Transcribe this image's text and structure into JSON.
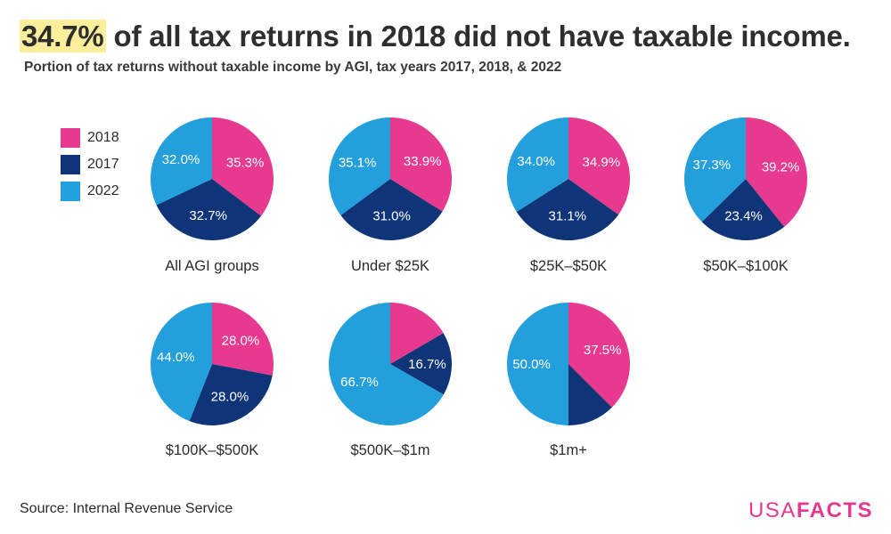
{
  "headline": {
    "highlight": "34.7%",
    "rest": " of all tax returns in 2018 did not have taxable income."
  },
  "subtitle": "Portion of tax returns without taxable income by AGI, tax years 2017, 2018, & 2022",
  "legend": [
    {
      "label": "2018",
      "color": "#e6398f"
    },
    {
      "label": "2017",
      "color": "#0f3578"
    },
    {
      "label": "2022",
      "color": "#239fdb"
    }
  ],
  "chart_data": {
    "type": "pie",
    "title": "34.7% of all tax returns in 2018 did not have taxable income.",
    "subtitle": "Portion of tax returns without taxable income by AGI, tax years 2017, 2018, & 2022",
    "series_order": [
      "2018",
      "2017",
      "2022"
    ],
    "pies": [
      {
        "label": "All AGI groups",
        "values": [
          35.3,
          32.7,
          32.0
        ],
        "value_labels": [
          "35.3%",
          "32.7%",
          "32.0%"
        ]
      },
      {
        "label": "Under $25K",
        "values": [
          33.9,
          31.0,
          35.1
        ],
        "value_labels": [
          "33.9%",
          "31.0%",
          "35.1%"
        ]
      },
      {
        "label": "$25K–$50K",
        "values": [
          34.9,
          31.1,
          34.0
        ],
        "value_labels": [
          "34.9%",
          "31.1%",
          "34.0%"
        ]
      },
      {
        "label": "$50K–$100K",
        "values": [
          39.2,
          23.4,
          37.3
        ],
        "value_labels": [
          "39.2%",
          "23.4%",
          "37.3%"
        ]
      },
      {
        "label": "$100K–$500K",
        "values": [
          28.0,
          28.0,
          44.0
        ],
        "value_labels": [
          "28.0%",
          "28.0%",
          "44.0%"
        ]
      },
      {
        "label": "$500K–$1m",
        "values": [
          16.6,
          16.7,
          66.7
        ],
        "value_labels": [
          "",
          "16.7%",
          "66.7%"
        ]
      },
      {
        "label": "$1m+",
        "values": [
          37.5,
          12.5,
          50.0
        ],
        "value_labels": [
          "37.5%",
          "",
          "50.0%"
        ]
      }
    ]
  },
  "footer": {
    "source": "Source: Internal Revenue Service",
    "logo_usa": "USA",
    "logo_facts": "FACTS",
    "logo_usa_color": "#e6398f",
    "logo_facts_color": "#e6398f"
  }
}
